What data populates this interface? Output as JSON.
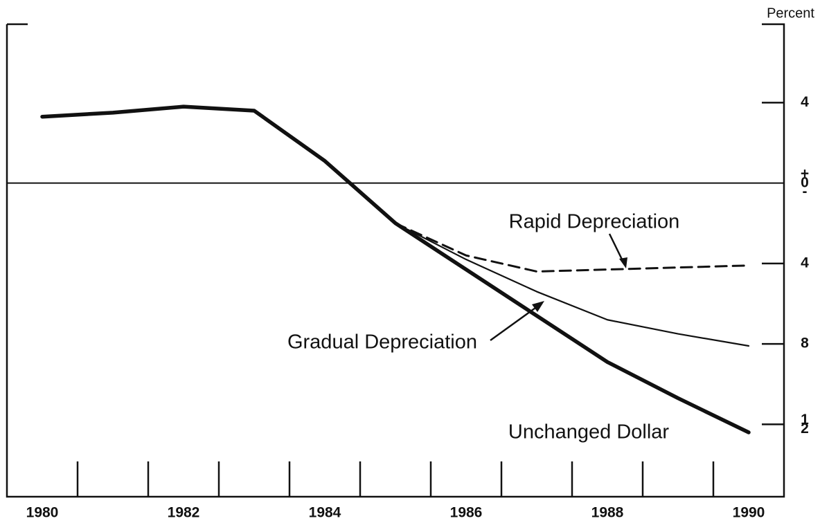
{
  "chart_data": {
    "type": "line",
    "y_axis_label": "Percent",
    "xlim": [
      1979.5,
      1990.5
    ],
    "xticks": [
      1980,
      1982,
      1984,
      1986,
      1988,
      1990
    ],
    "xminorticks": [
      1980.5,
      1981.5,
      1982.5,
      1983.5,
      1984.5,
      1985.5,
      1986.5,
      1987.5,
      1988.5,
      1989.5
    ],
    "ylim": [
      -15.6,
      7.9
    ],
    "yticks": [
      {
        "value": 4,
        "label": "4"
      },
      {
        "value": 0,
        "label": "+0-"
      },
      {
        "value": -4,
        "label": "4"
      },
      {
        "value": -8,
        "label": "8"
      },
      {
        "value": -12,
        "label": "12"
      }
    ],
    "zero_line": true,
    "series": [
      {
        "name": "Unchanged Dollar",
        "color": "#111111",
        "linestyle": "solid",
        "x": [
          1980,
          1981,
          1982,
          1983,
          1984,
          1985,
          1986,
          1987,
          1988,
          1989,
          1990
        ],
        "values": [
          3.3,
          3.5,
          3.8,
          3.6,
          1.1,
          -2.0,
          -4.3,
          -6.6,
          -8.9,
          -10.7,
          -12.4
        ]
      },
      {
        "name": "Gradual Depreciation",
        "color": "#111111",
        "linestyle": "solid",
        "x": [
          1985,
          1986,
          1987,
          1988,
          1989,
          1990
        ],
        "values": [
          -2.0,
          -3.8,
          -5.4,
          -6.8,
          -7.5,
          -8.1
        ]
      },
      {
        "name": "Rapid Depreciation",
        "color": "#111111",
        "linestyle": "dashed",
        "x": [
          1985,
          1985.5,
          1986,
          1987,
          1988,
          1989,
          1990
        ],
        "values": [
          -2.0,
          -2.8,
          -3.6,
          -4.4,
          -4.3,
          -4.2,
          -4.1
        ]
      }
    ]
  }
}
